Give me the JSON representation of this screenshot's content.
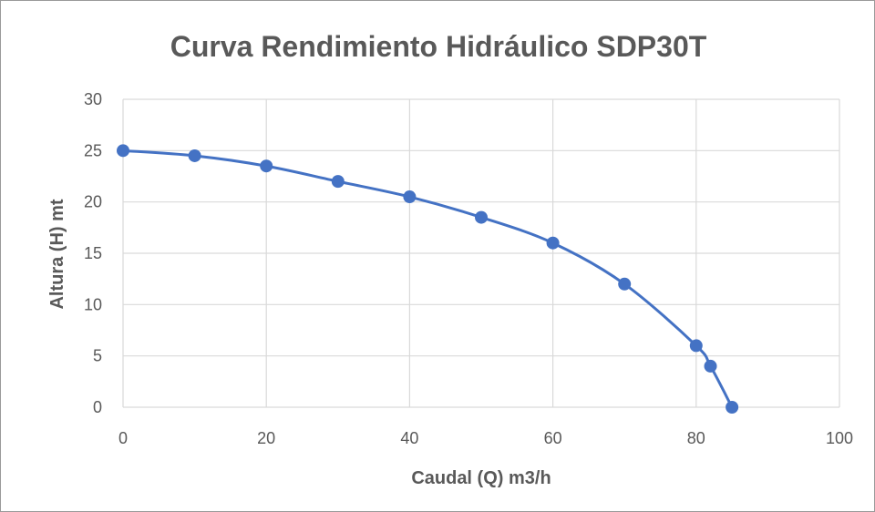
{
  "chart_data": {
    "type": "scatter",
    "title": "Curva Rendimiento Hidráulico SDP30T",
    "xlabel": "Caudal (Q) m3/h",
    "ylabel": "Altura (H) mt",
    "xlim": [
      0,
      100
    ],
    "ylim": [
      0,
      30
    ],
    "xticks": [
      "0",
      "20",
      "40",
      "60",
      "80",
      "100"
    ],
    "yticks": [
      "0",
      "5",
      "10",
      "15",
      "20",
      "25",
      "30"
    ],
    "grid": true,
    "legend": "none",
    "series": [
      {
        "color": "#4472c4",
        "x": [
          0,
          10,
          20,
          30,
          40,
          50,
          60,
          70,
          80,
          82,
          85
        ],
        "y": [
          25,
          24.5,
          23.5,
          22,
          20.5,
          18.5,
          16,
          12,
          6,
          4,
          0
        ]
      }
    ]
  }
}
